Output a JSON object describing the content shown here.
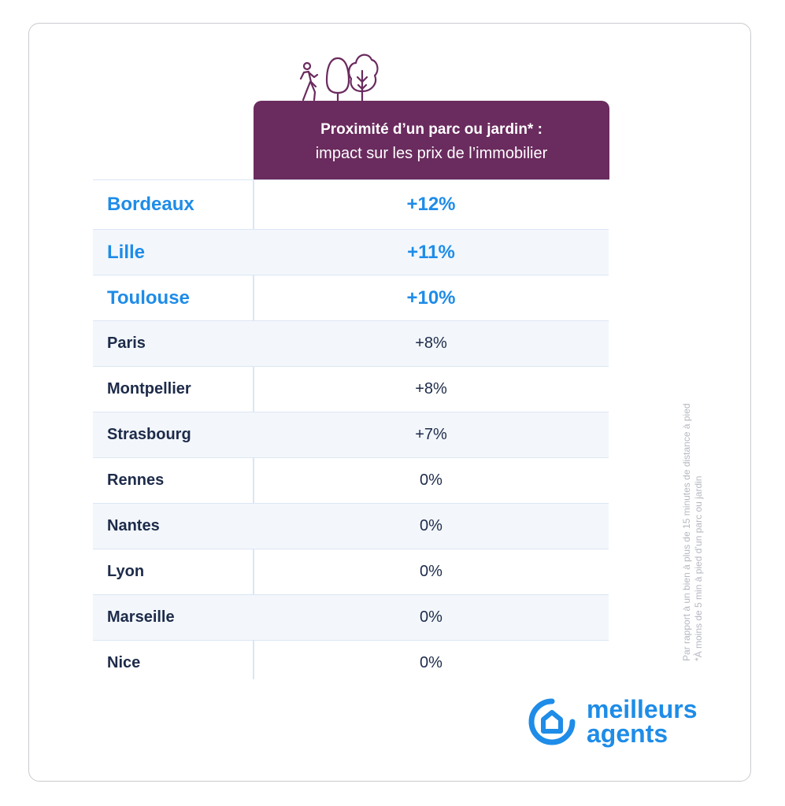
{
  "header": {
    "line1": "Proximité d’un parc ou jardin* :",
    "line2": "impact sur les prix de l’immobilier"
  },
  "rows": [
    {
      "city": "Bordeaux",
      "value": "+12%"
    },
    {
      "city": "Lille",
      "value": "+11%"
    },
    {
      "city": "Toulouse",
      "value": "+10%"
    },
    {
      "city": "Paris",
      "value": "+8%"
    },
    {
      "city": "Montpellier",
      "value": "+8%"
    },
    {
      "city": "Strasbourg",
      "value": "+7%"
    },
    {
      "city": "Rennes",
      "value": "0%"
    },
    {
      "city": "Nantes",
      "value": "0%"
    },
    {
      "city": "Lyon",
      "value": "0%"
    },
    {
      "city": "Marseille",
      "value": "0%"
    },
    {
      "city": "Nice",
      "value": "0%"
    }
  ],
  "notes": {
    "line1": "Par rapport à un bien à plus de 15 minutes de distance à pied",
    "line2": "*À moins de 5 min à pied d’un parc ou jardin"
  },
  "logo": {
    "line1": "meilleurs",
    "line2": "agents"
  },
  "icons": [
    "walking-person-icon",
    "tree-icon",
    "tree-icon"
  ],
  "colors": {
    "header": "#6a2b5e",
    "highlight": "#1e8ce8",
    "text": "#1d2b4a"
  },
  "chart_data": {
    "type": "table",
    "title": "Proximité d’un parc ou jardin* : impact sur les prix de l’immobilier",
    "categories": [
      "Bordeaux",
      "Lille",
      "Toulouse",
      "Paris",
      "Montpellier",
      "Strasbourg",
      "Rennes",
      "Nantes",
      "Lyon",
      "Marseille",
      "Nice"
    ],
    "values": [
      12,
      11,
      10,
      8,
      8,
      7,
      0,
      0,
      0,
      0,
      0
    ],
    "unit": "%"
  }
}
